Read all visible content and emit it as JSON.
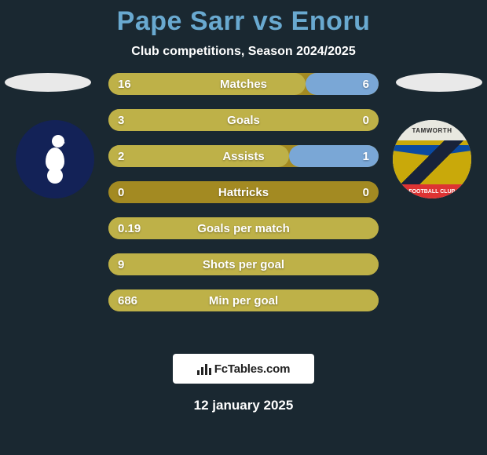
{
  "title": {
    "player_a": "Pape Sarr",
    "vs": "vs",
    "player_b": "Enoru",
    "color": "#69a9d0"
  },
  "subtitle": "Club competitions, Season 2024/2025",
  "crests": {
    "left": {
      "name": "tottenham-hotspur",
      "bg": "#132257",
      "fg": "#ffffff"
    },
    "right": {
      "name": "tamworth-fc",
      "top_text": "TAMWORTH",
      "bottom_text": "FOOTBALL CLUB",
      "colors": {
        "banner": "#e8e8e0",
        "shield": "#c9a90a",
        "chevron": "#0b4aa0",
        "sash": "#18233a",
        "ribbon": "#d33333"
      }
    }
  },
  "halo_color": "#e9e9e9",
  "stats": {
    "bar_bg": "#a38a22",
    "left_color": "#beb148",
    "right_color": "#7aa7d6",
    "rows": [
      {
        "label": "Matches",
        "left": "16",
        "right": "6",
        "left_pct": 73,
        "right_pct": 27
      },
      {
        "label": "Goals",
        "left": "3",
        "right": "0",
        "left_pct": 100,
        "right_pct": 0
      },
      {
        "label": "Assists",
        "left": "2",
        "right": "1",
        "left_pct": 67,
        "right_pct": 33
      },
      {
        "label": "Hattricks",
        "left": "0",
        "right": "0",
        "left_pct": 0,
        "right_pct": 0
      },
      {
        "label": "Goals per match",
        "left": "0.19",
        "right": "",
        "left_pct": 100,
        "right_pct": 0
      },
      {
        "label": "Shots per goal",
        "left": "9",
        "right": "",
        "left_pct": 100,
        "right_pct": 0
      },
      {
        "label": "Min per goal",
        "left": "686",
        "right": "",
        "left_pct": 100,
        "right_pct": 0
      }
    ]
  },
  "brand": {
    "text": "FcTables.com"
  },
  "date": "12 january 2025",
  "background_color": "#1a2831"
}
